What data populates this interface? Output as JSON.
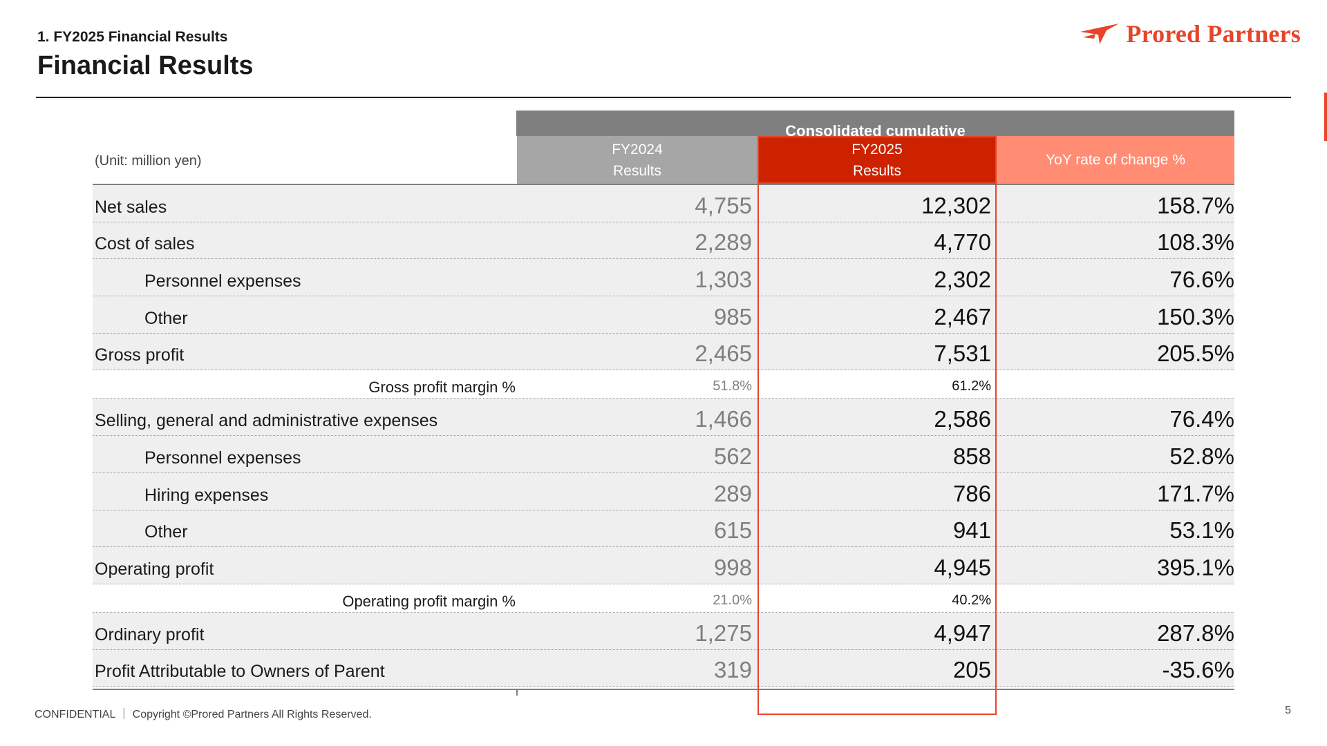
{
  "header": {
    "breadcrumb": "1. FY2025 Financial Results",
    "title": "Financial Results",
    "logo_text": "Prored Partners",
    "logo_icon": "swoosh-arrow-icon"
  },
  "colors": {
    "accent": "#e6452a",
    "fy2025_header": "#cc2200",
    "yoy_header": "#ff8c73",
    "fy2024_header": "#a6a6a6",
    "group_header": "#7f7f7f"
  },
  "table": {
    "group_header": "Consolidated cumulative",
    "unit_label": "(Unit: million yen)",
    "columns": [
      {
        "line1": "FY2024",
        "line2": "Results"
      },
      {
        "line1": "FY2025",
        "line2": "Results"
      },
      {
        "line1": "YoY rate of change %",
        "line2": ""
      }
    ],
    "rows": [
      {
        "label": "Net sales",
        "fy2024": "4,755",
        "fy2025": "12,302",
        "yoy": "158.7%"
      },
      {
        "label": "Cost of sales",
        "fy2024": "2,289",
        "fy2025": "4,770",
        "yoy": "108.3%"
      },
      {
        "label": "Personnel expenses",
        "fy2024": "1,303",
        "fy2025": "2,302",
        "yoy": "76.6%"
      },
      {
        "label": "Other",
        "fy2024": "985",
        "fy2025": "2,467",
        "yoy": "150.3%"
      },
      {
        "label": "Gross profit",
        "fy2024": "2,465",
        "fy2025": "7,531",
        "yoy": "205.5%"
      },
      {
        "label": "Gross profit margin %",
        "fy2024": "51.8%",
        "fy2025": "61.2%",
        "yoy": ""
      },
      {
        "label": "Selling, general and administrative expenses",
        "fy2024": "1,466",
        "fy2025": "2,586",
        "yoy": "76.4%"
      },
      {
        "label": "Personnel expenses",
        "fy2024": "562",
        "fy2025": "858",
        "yoy": "52.8%"
      },
      {
        "label": "Hiring expenses",
        "fy2024": "289",
        "fy2025": "786",
        "yoy": "171.7%"
      },
      {
        "label": "Other",
        "fy2024": "615",
        "fy2025": "941",
        "yoy": "53.1%"
      },
      {
        "label": "Operating profit",
        "fy2024": "998",
        "fy2025": "4,945",
        "yoy": "395.1%"
      },
      {
        "label": "Operating profit margin %",
        "fy2024": "21.0%",
        "fy2025": "40.2%",
        "yoy": ""
      },
      {
        "label": "Ordinary profit",
        "fy2024": "1,275",
        "fy2025": "4,947",
        "yoy": "287.8%"
      },
      {
        "label": "Profit Attributable to Owners of Parent",
        "fy2024": "319",
        "fy2025": "205",
        "yoy": "-35.6%"
      }
    ]
  },
  "footer": {
    "text": "CONFIDENTIAL ｜ Copyright ©Prored Partners All Rights Reserved.",
    "page_number": "5"
  }
}
